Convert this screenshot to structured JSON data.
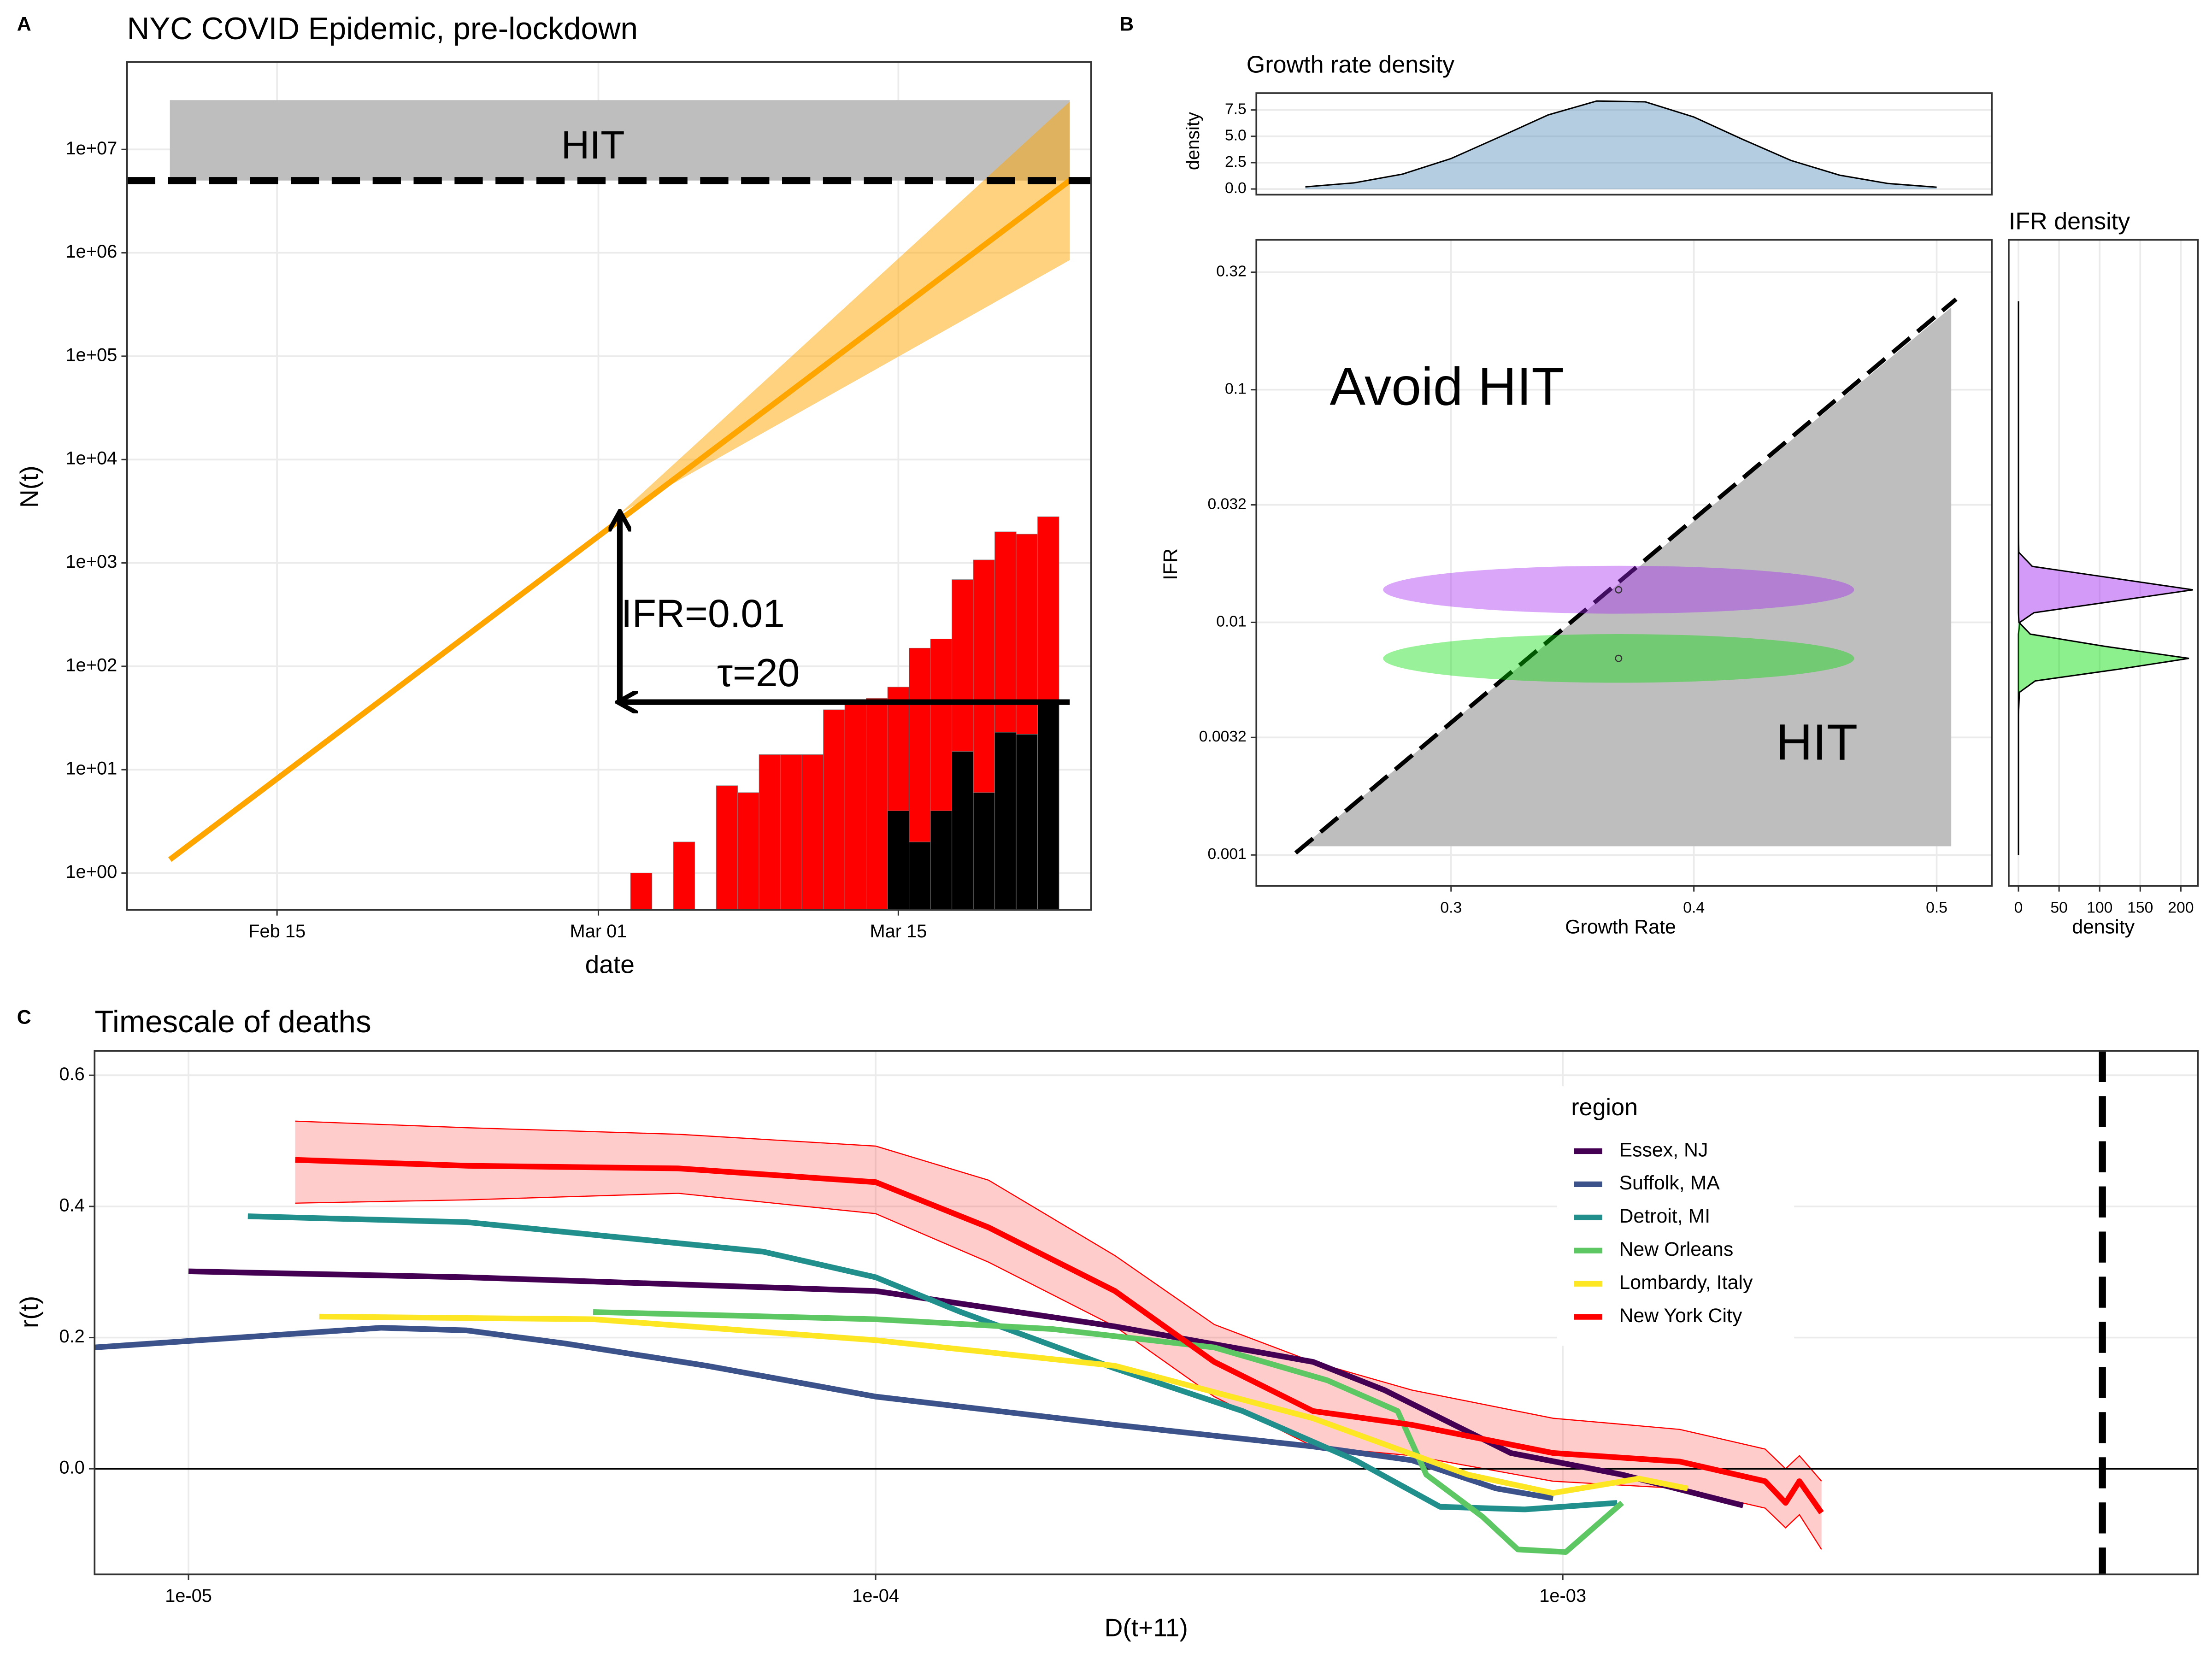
{
  "panel_labels": [
    "A",
    "B",
    "C"
  ],
  "chart_data": [
    {
      "type": "combo",
      "title": "NYC COVID Epidemic, pre-lockdown",
      "xlabel": "date",
      "ylabel": "N(t)",
      "xlim": [
        "02-08",
        "03-24"
      ],
      "ylim": [
        0.44,
        70000000
      ],
      "ylog": true,
      "xticks": [
        {
          "value": "02-15",
          "label": "Feb 15"
        },
        {
          "value": "03-01",
          "label": "Mar 01"
        },
        {
          "value": "03-15",
          "label": "Mar 15"
        }
      ],
      "yticks": [
        {
          "value": 1,
          "label": "1e+00"
        },
        {
          "value": 10,
          "label": "1e+01"
        },
        {
          "value": 100,
          "label": "1e+02"
        },
        {
          "value": 1000,
          "label": "1e+03"
        },
        {
          "value": 10000,
          "label": "1e+04"
        },
        {
          "value": 100000,
          "label": "1e+05"
        },
        {
          "value": 1000000,
          "label": "1e+06"
        },
        {
          "value": 10000000,
          "label": "1e+07"
        }
      ],
      "grid": true,
      "band": {
        "color": "#bebebe",
        "x": [
          "02-10",
          "03-23"
        ],
        "y": [
          5000000,
          30000000
        ]
      },
      "hline": 5000000,
      "series": [
        {
          "kind": "ribbon",
          "color": "#ffa500",
          "x": [
            "03-02",
            "03-23"
          ],
          "lower": [
            3000,
            850000
          ],
          "upper": [
            3000,
            29000000
          ]
        },
        {
          "kind": "line",
          "color": "#ffa500",
          "x": [
            "02-10",
            "03-23"
          ],
          "values": [
            1.35,
            5000000
          ]
        },
        {
          "kind": "bar",
          "color": "#ff0000",
          "x": [
            "03-03",
            "03-04",
            "03-05",
            "03-06",
            "03-07",
            "03-08",
            "03-09",
            "03-10",
            "03-11",
            "03-12",
            "03-13",
            "03-14",
            "03-15",
            "03-16",
            "03-17",
            "03-18",
            "03-19",
            "03-20",
            "03-21",
            "03-22"
          ],
          "values": [
            1,
            null,
            2,
            null,
            7,
            6,
            14,
            14,
            14,
            38,
            46,
            49,
            63,
            150,
            184,
            690,
            1070,
            2000,
            1900,
            2800
          ]
        },
        {
          "kind": "bar",
          "color": "#000000",
          "x": [
            "03-03",
            "03-04",
            "03-05",
            "03-06",
            "03-07",
            "03-08",
            "03-09",
            "03-10",
            "03-11",
            "03-12",
            "03-13",
            "03-14",
            "03-15",
            "03-16",
            "03-17",
            "03-18",
            "03-19",
            "03-20",
            "03-21",
            "03-22"
          ],
          "values": [
            null,
            null,
            null,
            null,
            null,
            null,
            null,
            null,
            null,
            null,
            null,
            null,
            4,
            2,
            4,
            15,
            6,
            23,
            22,
            46
          ]
        }
      ],
      "arrows": [
        {
          "x": [
            "03-02",
            "03-02"
          ],
          "y": [
            45,
            3000
          ]
        },
        {
          "x": [
            "03-23",
            "03-02"
          ],
          "y": [
            45,
            45
          ]
        }
      ],
      "annotations": [
        "HIT",
        "IFR=0.01",
        "τ=20"
      ]
    },
    {
      "type": "area",
      "title": "Growth rate density",
      "ylabel": "density",
      "xlim": [
        0.2198,
        0.5227
      ],
      "ylim": [
        -0.54,
        9.1
      ],
      "yticks": [
        {
          "value": 0,
          "label": "0.0"
        },
        2.5,
        {
          "value": 5,
          "label": "5.0"
        },
        7.5
      ],
      "grid": true,
      "x": [
        0.24,
        0.26,
        0.28,
        0.3,
        0.32,
        0.34,
        0.36,
        0.38,
        0.4,
        0.42,
        0.44,
        0.46,
        0.48,
        0.5
      ],
      "series": [
        {
          "color": "#4682b4",
          "values": [
            0.2,
            0.58,
            1.41,
            2.89,
            4.94,
            7.03,
            8.35,
            8.27,
            6.83,
            4.72,
            2.71,
            1.31,
            0.52,
            0.17
          ]
        }
      ]
    },
    {
      "type": "region",
      "xlabel": "Growth Rate",
      "ylabel": "IFR",
      "xlim": [
        0.2198,
        0.5227
      ],
      "ylim": [
        0.000736,
        0.441
      ],
      "ylog": true,
      "xticks": [
        0.3,
        0.4,
        0.5
      ],
      "yticks": [
        0.001,
        0.0032,
        0.01,
        0.032,
        0.1,
        0.32
      ],
      "grid": true,
      "hit_region": {
        "color": "#bebebe",
        "x": [
          0.239,
          0.506,
          0.506
        ],
        "y": [
          0.00109,
          0.226,
          0.00109
        ]
      },
      "diagonal": {
        "x": [
          0.236,
          0.508
        ],
        "y": [
          0.00102,
          0.245
        ]
      },
      "ellipses": [
        {
          "color": "#a020f0",
          "x": 0.369,
          "y": 0.0138,
          "xmin": 0.272,
          "xmax": 0.466,
          "ymin": 0.0109,
          "ymax": 0.0175
        },
        {
          "color": "#00dd00",
          "x": 0.369,
          "y": 0.007,
          "xmin": 0.272,
          "xmax": 0.466,
          "ymin": 0.0055,
          "ymax": 0.0089
        }
      ],
      "annotations": [
        "Avoid HIT",
        "HIT"
      ]
    },
    {
      "type": "area",
      "orientation": "horizontal",
      "title": "IFR density",
      "xlabel": "density",
      "xlim": [
        -12,
        221
      ],
      "ylim": [
        0.000736,
        0.441
      ],
      "ylog": true,
      "xticks": [
        0,
        50,
        100,
        150,
        200
      ],
      "grid": true,
      "y": [
        0.001,
        0.0025,
        0.004,
        0.005,
        0.0056,
        0.0063,
        0.007,
        0.0079,
        0.0089,
        0.01,
        0.011,
        0.0123,
        0.0138,
        0.0155,
        0.0174,
        0.02,
        0.025,
        0.04,
        0.24
      ],
      "series": [
        {
          "color": "#a020f0",
          "values": [
            0,
            0,
            0,
            0,
            0,
            0,
            0,
            0,
            0,
            1.7,
            19,
            116,
            215,
            116,
            17,
            0.4,
            0,
            0,
            0
          ]
        },
        {
          "color": "#00dd00",
          "values": [
            0,
            0,
            0,
            1.1,
            20.6,
            125,
            210,
            105,
            14.5,
            0.6,
            0,
            0,
            0,
            0,
            0,
            0,
            0,
            0,
            0
          ]
        }
      ]
    },
    {
      "type": "line",
      "title": "Timescale of deaths",
      "xlabel": "D(t+11)",
      "ylabel": "r(t)",
      "xlim": [
        7.3e-06,
        0.0084
      ],
      "xlog": true,
      "ylim": [
        -0.161,
        0.637
      ],
      "xticks": [
        {
          "value": 1e-05,
          "label": "1e-05"
        },
        {
          "value": 0.0001,
          "label": "1e-04"
        },
        {
          "value": 0.001,
          "label": "1e-03"
        }
      ],
      "yticks": [
        {
          "value": 0,
          "label": "0.0"
        },
        0.2,
        0.4,
        0.6
      ],
      "grid": true,
      "hline": 0,
      "vline": 0.0061,
      "legend_title": "region",
      "series": [
        {
          "name": "Essex, NJ",
          "color": "#440154",
          "x": [
            1e-05,
            2.54e-05,
            0.0001,
            0.000223,
            0.000433,
            0.00055,
            0.00084,
            0.00122,
            0.00183
          ],
          "values": [
            0.301,
            0.292,
            0.271,
            0.217,
            0.163,
            0.12,
            0.024,
            -0.009,
            -0.056
          ]
        },
        {
          "name": "Suffolk, MA",
          "color": "#3b528b",
          "x": [
            7.3e-06,
            1.91e-05,
            2.54e-05,
            3.53e-05,
            5.68e-05,
            0.0001,
            0.000223,
            0.000433,
            0.000603,
            0.0008,
            0.000968
          ],
          "values": [
            0.185,
            0.215,
            0.211,
            0.191,
            0.157,
            0.11,
            0.067,
            0.034,
            0.013,
            -0.03,
            -0.045
          ]
        },
        {
          "name": "Detroit, MI",
          "color": "#21908c",
          "x": [
            1.22e-05,
            2.54e-05,
            6.86e-05,
            0.0001,
            0.000133,
            0.000223,
            0.000342,
            0.000499,
            0.000663,
            0.000881,
            0.0012
          ],
          "values": [
            0.385,
            0.376,
            0.331,
            0.292,
            0.239,
            0.153,
            0.088,
            0.013,
            -0.058,
            -0.062,
            -0.052
          ]
        },
        {
          "name": "New Orleans",
          "color": "#5dc863",
          "x": [
            3.88e-05,
            0.0001,
            0.000181,
            0.000311,
            0.000454,
            0.000575,
            0.000633,
            0.000764,
            0.00086,
            0.00101,
            0.00122
          ],
          "values": [
            0.239,
            0.228,
            0.213,
            0.185,
            0.135,
            0.088,
            -0.009,
            -0.073,
            -0.123,
            -0.127,
            -0.052
          ]
        },
        {
          "name": "Lombardy, Italy",
          "color": "#fde725",
          "x": [
            1.55e-05,
            3.88e-05,
            0.0001,
            0.000223,
            0.000433,
            0.000728,
            0.000968,
            0.00129,
            0.00152
          ],
          "values": [
            0.232,
            0.228,
            0.196,
            0.157,
            0.077,
            -0.009,
            -0.037,
            -0.015,
            -0.03
          ]
        },
        {
          "name": "New York City",
          "color": "#ff0000",
          "x": [
            1.43e-05,
            2.54e-05,
            5.16e-05,
            0.0001,
            0.000146,
            0.000223,
            0.000311,
            0.000433,
            0.000603,
            0.000968,
            0.00148,
            0.00197,
            0.00211,
            0.00221,
            0.00238
          ],
          "values": [
            0.471,
            0.462,
            0.458,
            0.437,
            0.368,
            0.271,
            0.163,
            0.088,
            0.067,
            0.024,
            0.011,
            -0.019,
            -0.052,
            -0.019,
            -0.067
          ],
          "lower": [
            0.405,
            0.41,
            0.42,
            0.389,
            0.315,
            0.217,
            0.11,
            0.034,
            0.02,
            -0.019,
            -0.03,
            -0.06,
            -0.09,
            -0.07,
            -0.123
          ],
          "upper": [
            0.53,
            0.52,
            0.51,
            0.492,
            0.44,
            0.325,
            0.22,
            0.163,
            0.12,
            0.077,
            0.06,
            0.03,
            0.0,
            0.02,
            -0.019
          ]
        }
      ]
    }
  ]
}
